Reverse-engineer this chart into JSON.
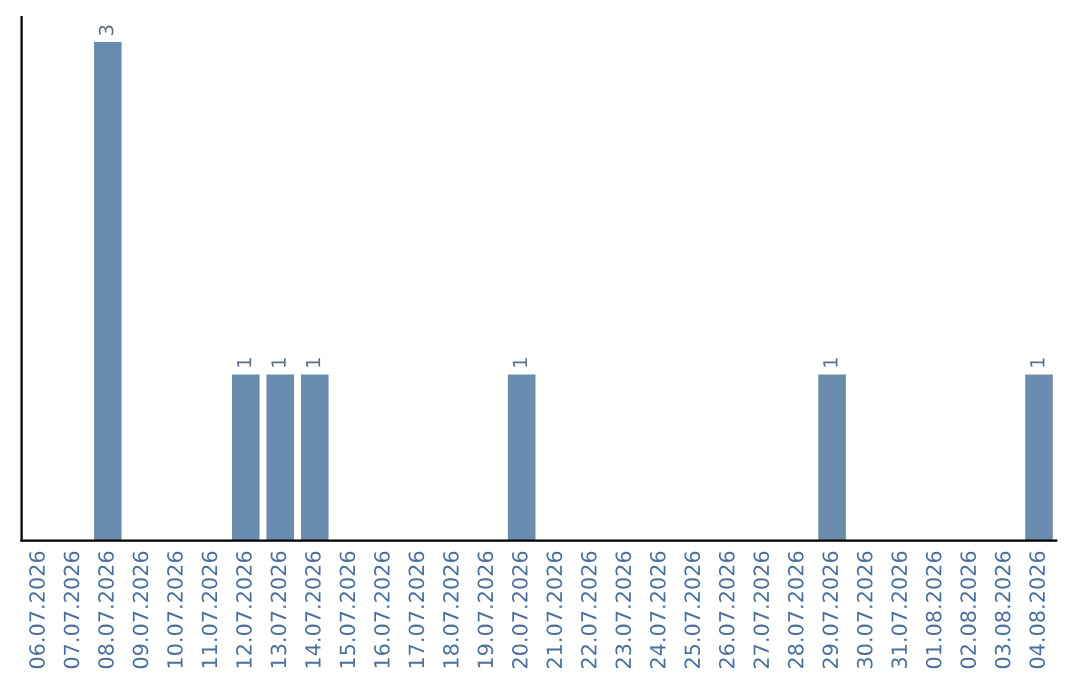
{
  "chart_data": {
    "type": "bar",
    "categories": [
      "06.07.2026",
      "07.07.2026",
      "08.07.2026",
      "09.07.2026",
      "10.07.2026",
      "11.07.2026",
      "12.07.2026",
      "13.07.2026",
      "14.07.2026",
      "15.07.2026",
      "16.07.2026",
      "17.07.2026",
      "18.07.2026",
      "19.07.2026",
      "20.07.2026",
      "21.07.2026",
      "22.07.2026",
      "23.07.2026",
      "24.07.2026",
      "25.07.2026",
      "26.07.2026",
      "27.07.2026",
      "28.07.2026",
      "29.07.2026",
      "30.07.2026",
      "31.07.2026",
      "01.08.2026",
      "02.08.2026",
      "03.08.2026",
      "04.08.2026"
    ],
    "values": [
      0,
      0,
      3,
      0,
      0,
      0,
      1,
      1,
      1,
      0,
      0,
      0,
      0,
      0,
      1,
      0,
      0,
      0,
      0,
      0,
      0,
      0,
      0,
      1,
      0,
      0,
      0,
      0,
      0,
      1
    ],
    "value_labels": [
      null,
      null,
      "3",
      null,
      null,
      null,
      "1",
      "1",
      "1",
      null,
      null,
      null,
      null,
      null,
      "1",
      null,
      null,
      null,
      null,
      null,
      null,
      null,
      null,
      "1",
      null,
      null,
      null,
      null,
      null,
      "1"
    ],
    "color": "#6a8caf",
    "tick_labels": "x",
    "grid": false,
    "legend": false
  }
}
